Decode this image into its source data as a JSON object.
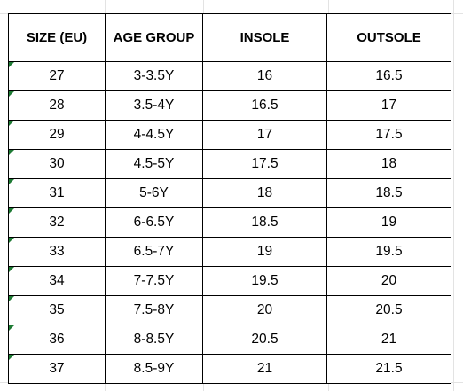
{
  "table": {
    "headers": [
      "SIZE (EU)",
      "AGE GROUP",
      "INSOLE",
      "OUTSOLE"
    ],
    "rows": [
      {
        "size": "27",
        "age": "3-3.5Y",
        "insole": "16",
        "outsole": "16.5"
      },
      {
        "size": "28",
        "age": "3.5-4Y",
        "insole": "16.5",
        "outsole": "17"
      },
      {
        "size": "29",
        "age": "4-4.5Y",
        "insole": "17",
        "outsole": "17.5"
      },
      {
        "size": "30",
        "age": "4.5-5Y",
        "insole": "17.5",
        "outsole": "18"
      },
      {
        "size": "31",
        "age": "5-6Y",
        "insole": "18",
        "outsole": "18.5"
      },
      {
        "size": "32",
        "age": "6-6.5Y",
        "insole": "18.5",
        "outsole": "19"
      },
      {
        "size": "33",
        "age": "6.5-7Y",
        "insole": "19",
        "outsole": "19.5"
      },
      {
        "size": "34",
        "age": "7-7.5Y",
        "insole": "19.5",
        "outsole": "20"
      },
      {
        "size": "35",
        "age": "7.5-8Y",
        "insole": "20",
        "outsole": "20.5"
      },
      {
        "size": "36",
        "age": "8-8.5Y",
        "insole": "20.5",
        "outsole": "21"
      },
      {
        "size": "37",
        "age": "8.5-9Y",
        "insole": "21",
        "outsole": "21.5"
      }
    ]
  },
  "colors": {
    "text_flag": "#1e7b34",
    "gridline": "#e3e3e3",
    "border": "#000000"
  }
}
